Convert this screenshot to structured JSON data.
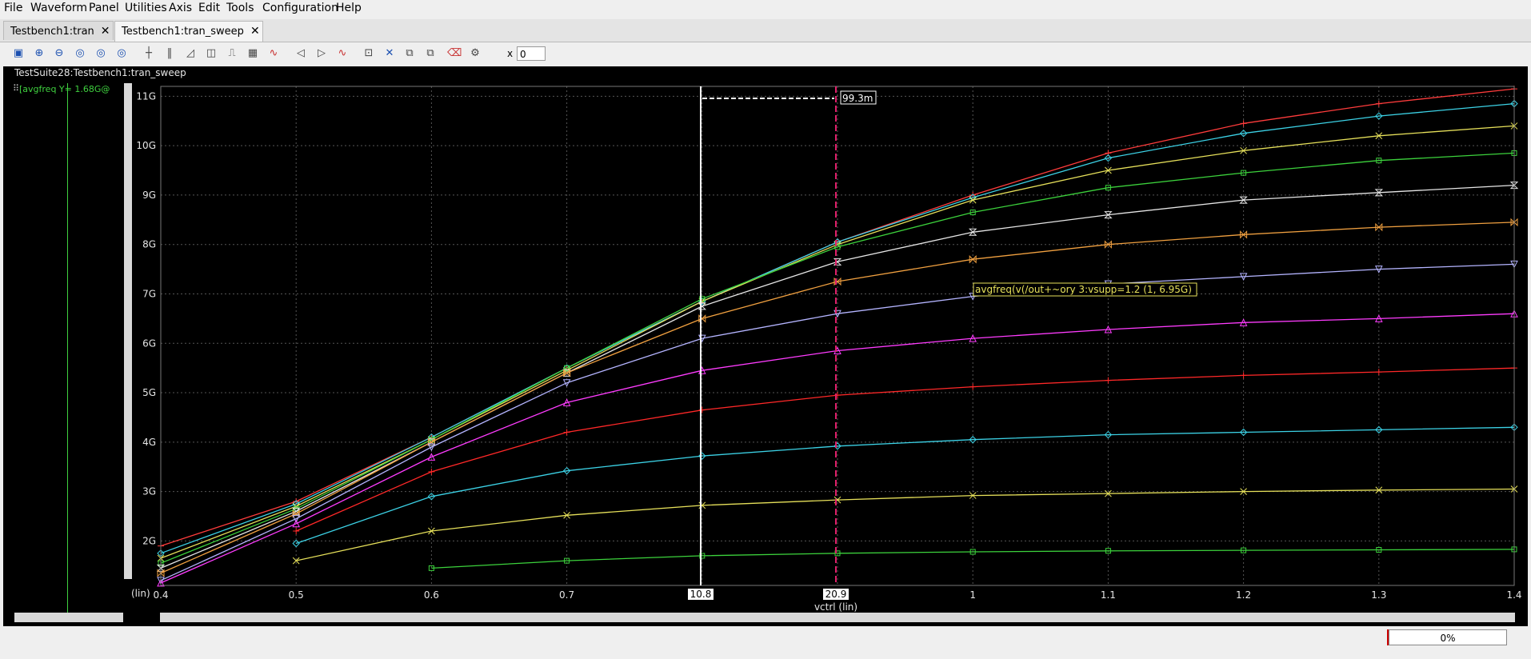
{
  "menu": [
    "File",
    "Waveform",
    "Panel",
    "Utilities",
    "Axis",
    "Edit",
    "Tools",
    "Configuration",
    "Help"
  ],
  "tabs": [
    {
      "label": "Testbench1:tran",
      "active": false
    },
    {
      "label": "Testbench1:tran_sweep",
      "active": true
    }
  ],
  "toolbar": {
    "x_label": "x",
    "x_value": "0"
  },
  "panel_title": "TestSuite28:Testbench1:tran_sweep",
  "legend_text": "[avgfreq Y= 1.68G@",
  "status": {
    "progress": "0%"
  },
  "marker_delta": "99.3m",
  "marker_a_label": "10.8",
  "marker_b_label": "20.9",
  "tooltip": "avgfreq(v(/out+~ory 3:vsupp=1.2 (1, 6.95G)",
  "colors": {
    "background": "#000000",
    "grid": "#555555",
    "marker_a": "#ffffff",
    "marker_b": "#e0206a"
  },
  "chart_data": {
    "type": "line",
    "xlabel": "vctrl (lin)",
    "ylabel": "",
    "x_scale_label": "(lin)",
    "xlim": [
      0.4,
      1.4
    ],
    "ylim": [
      1.1,
      11.2
    ],
    "x_ticks": [
      "0.4",
      "0.5",
      "0.6",
      "0.7",
      "0.8",
      "0.9",
      "1",
      "1.1",
      "1.2",
      "1.3",
      "1.4"
    ],
    "y_ticks": [
      "2G",
      "3G",
      "4G",
      "5G",
      "6G",
      "7G",
      "8G",
      "9G",
      "10G",
      "11G"
    ],
    "x": [
      0.4,
      0.5,
      0.6,
      0.7,
      0.8,
      0.9,
      1.0,
      1.1,
      1.2,
      1.3,
      1.4
    ],
    "series": [
      {
        "color": "#ff3c3c",
        "marker": "plus",
        "values": [
          1.9,
          2.8,
          4.1,
          5.5,
          6.85,
          8.05,
          9.0,
          9.85,
          10.45,
          10.85,
          11.15
        ]
      },
      {
        "color": "#3cd2e6",
        "marker": "diamond",
        "values": [
          1.75,
          2.75,
          4.1,
          5.5,
          6.85,
          8.05,
          8.95,
          9.75,
          10.25,
          10.6,
          10.85
        ]
      },
      {
        "color": "#e6e05a",
        "marker": "x",
        "values": [
          1.65,
          2.7,
          4.05,
          5.45,
          6.85,
          8.0,
          8.9,
          9.5,
          9.9,
          10.2,
          10.4
        ]
      },
      {
        "color": "#3cd23c",
        "marker": "square",
        "values": [
          1.55,
          2.65,
          4.05,
          5.5,
          6.9,
          7.95,
          8.65,
          9.15,
          9.45,
          9.7,
          9.85
        ]
      },
      {
        "color": "#e6e6e6",
        "marker": "hourglass",
        "values": [
          1.45,
          2.6,
          4.0,
          5.4,
          6.75,
          7.65,
          8.25,
          8.6,
          8.9,
          9.05,
          9.2
        ]
      },
      {
        "color": "#f0a040",
        "marker": "bowtie",
        "values": [
          1.35,
          2.55,
          4.0,
          5.4,
          6.5,
          7.25,
          7.7,
          8.0,
          8.2,
          8.35,
          8.45
        ]
      },
      {
        "color": "#b4b4ff",
        "marker": "tri-down",
        "values": [
          1.2,
          2.45,
          3.9,
          5.2,
          6.1,
          6.6,
          6.95,
          7.2,
          7.35,
          7.5,
          7.6
        ]
      },
      {
        "color": "#ff3cff",
        "marker": "tri-up",
        "values": [
          1.15,
          2.35,
          3.7,
          4.8,
          5.45,
          5.85,
          6.1,
          6.28,
          6.42,
          6.5,
          6.6
        ]
      },
      {
        "color": "#ff2828",
        "marker": "plus",
        "values": [
          null,
          2.2,
          3.4,
          4.2,
          4.65,
          4.95,
          5.12,
          5.25,
          5.35,
          5.42,
          5.5
        ]
      },
      {
        "color": "#3cd2e6",
        "marker": "diamond",
        "values": [
          null,
          1.95,
          2.9,
          3.42,
          3.72,
          3.92,
          4.05,
          4.15,
          4.2,
          4.25,
          4.3
        ]
      },
      {
        "color": "#e6e05a",
        "marker": "x",
        "values": [
          null,
          1.6,
          2.2,
          2.52,
          2.72,
          2.83,
          2.92,
          2.96,
          3.0,
          3.03,
          3.05
        ]
      },
      {
        "color": "#3cd23c",
        "marker": "square",
        "values": [
          null,
          null,
          1.45,
          1.6,
          1.7,
          1.75,
          1.78,
          1.8,
          1.81,
          1.82,
          1.83
        ]
      }
    ],
    "grid": true,
    "legend": "left"
  }
}
